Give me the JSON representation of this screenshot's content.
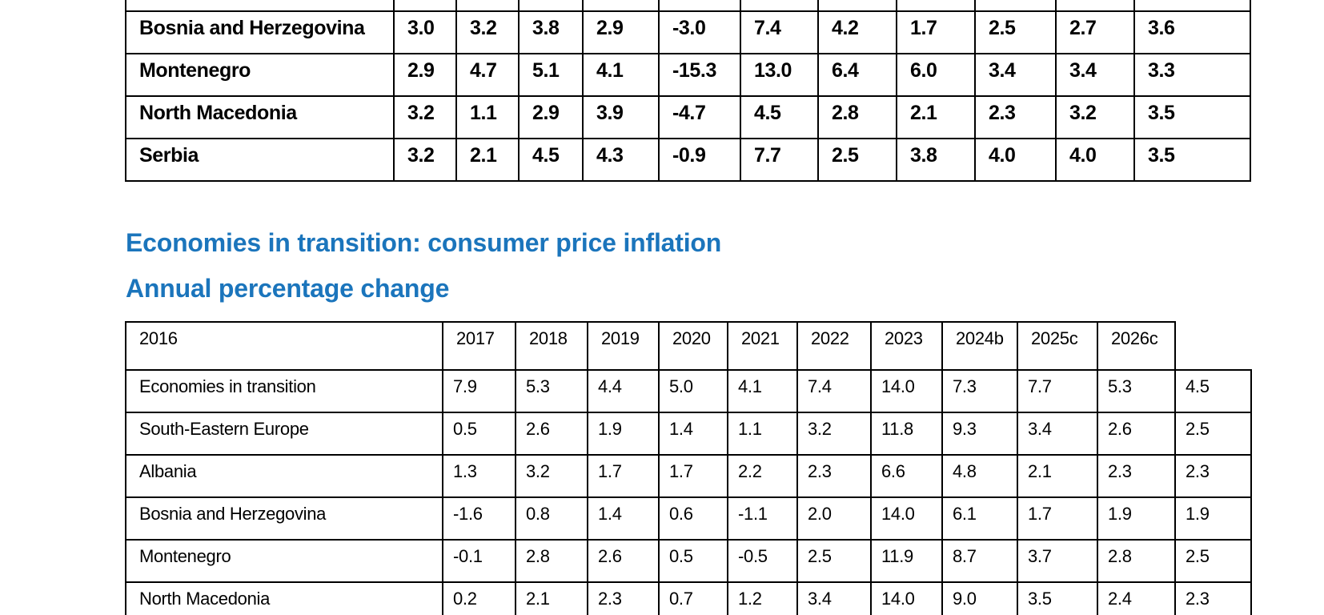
{
  "colors": {
    "heading_blue": "#1B75BC",
    "table_border": "#000000",
    "page_background": "#ffffff",
    "body_text": "#000000"
  },
  "heading": {
    "title": "Economies in transition: consumer price inflation",
    "subtitle": "Annual percentage change"
  },
  "table_top": {
    "description_visible_rows_only": "upper table clipped at top of viewport",
    "rows": [
      {
        "label": "Bosnia and Herzegovina",
        "values": [
          "3.0",
          "3.2",
          "3.8",
          "2.9",
          "-3.0",
          "7.4",
          "4.2",
          "1.7",
          "2.5",
          "2.7",
          "3.6"
        ]
      },
      {
        "label": "Montenegro",
        "values": [
          "2.9",
          "4.7",
          "5.1",
          "4.1",
          "-15.3",
          "13.0",
          "6.4",
          "6.0",
          "3.4",
          "3.4",
          "3.3"
        ]
      },
      {
        "label": "North Macedonia",
        "values": [
          "3.2",
          "1.1",
          "2.9",
          "3.9",
          "-4.7",
          "4.5",
          "2.8",
          "2.1",
          "2.3",
          "3.2",
          "3.5"
        ]
      },
      {
        "label": "Serbia",
        "values": [
          "3.2",
          "2.1",
          "4.5",
          "4.3",
          "-0.9",
          "7.7",
          "2.5",
          "3.8",
          "4.0",
          "4.0",
          "3.5"
        ]
      }
    ]
  },
  "table_bottom": {
    "header": [
      "2016",
      "2017",
      "2018",
      "2019",
      "2020",
      "2021",
      "2022",
      "2023",
      "2024b",
      "2025c",
      "2026c"
    ],
    "rows": [
      {
        "label": "Economies in transition",
        "values": [
          "7.9",
          "5.3",
          "4.4",
          "5.0",
          "4.1",
          "7.4",
          "14.0",
          "7.3",
          "7.7",
          "5.3",
          "4.5"
        ]
      },
      {
        "label": "South-Eastern Europe",
        "values": [
          "0.5",
          "2.6",
          "1.9",
          "1.4",
          "1.1",
          "3.2",
          "11.8",
          "9.3",
          "3.4",
          "2.6",
          "2.5"
        ]
      },
      {
        "label": "Albania",
        "values": [
          "1.3",
          "3.2",
          "1.7",
          "1.7",
          "2.2",
          "2.3",
          "6.6",
          "4.8",
          "2.1",
          "2.3",
          "2.3"
        ]
      },
      {
        "label": "Bosnia and Herzegovina",
        "values": [
          "-1.6",
          "0.8",
          "1.4",
          "0.6",
          "-1.1",
          "2.0",
          "14.0",
          "6.1",
          "1.7",
          "1.9",
          "1.9"
        ]
      },
      {
        "label": "Montenegro",
        "values": [
          "-0.1",
          "2.8",
          "2.6",
          "0.5",
          "-0.5",
          "2.5",
          "11.9",
          "8.7",
          "3.7",
          "2.8",
          "2.5"
        ]
      },
      {
        "label": "North Macedonia",
        "values": [
          "0.2",
          "2.1",
          "2.3",
          "0.7",
          "1.2",
          "3.4",
          "14.0",
          "9.0",
          "3.5",
          "2.4",
          "2.3"
        ]
      }
    ]
  }
}
